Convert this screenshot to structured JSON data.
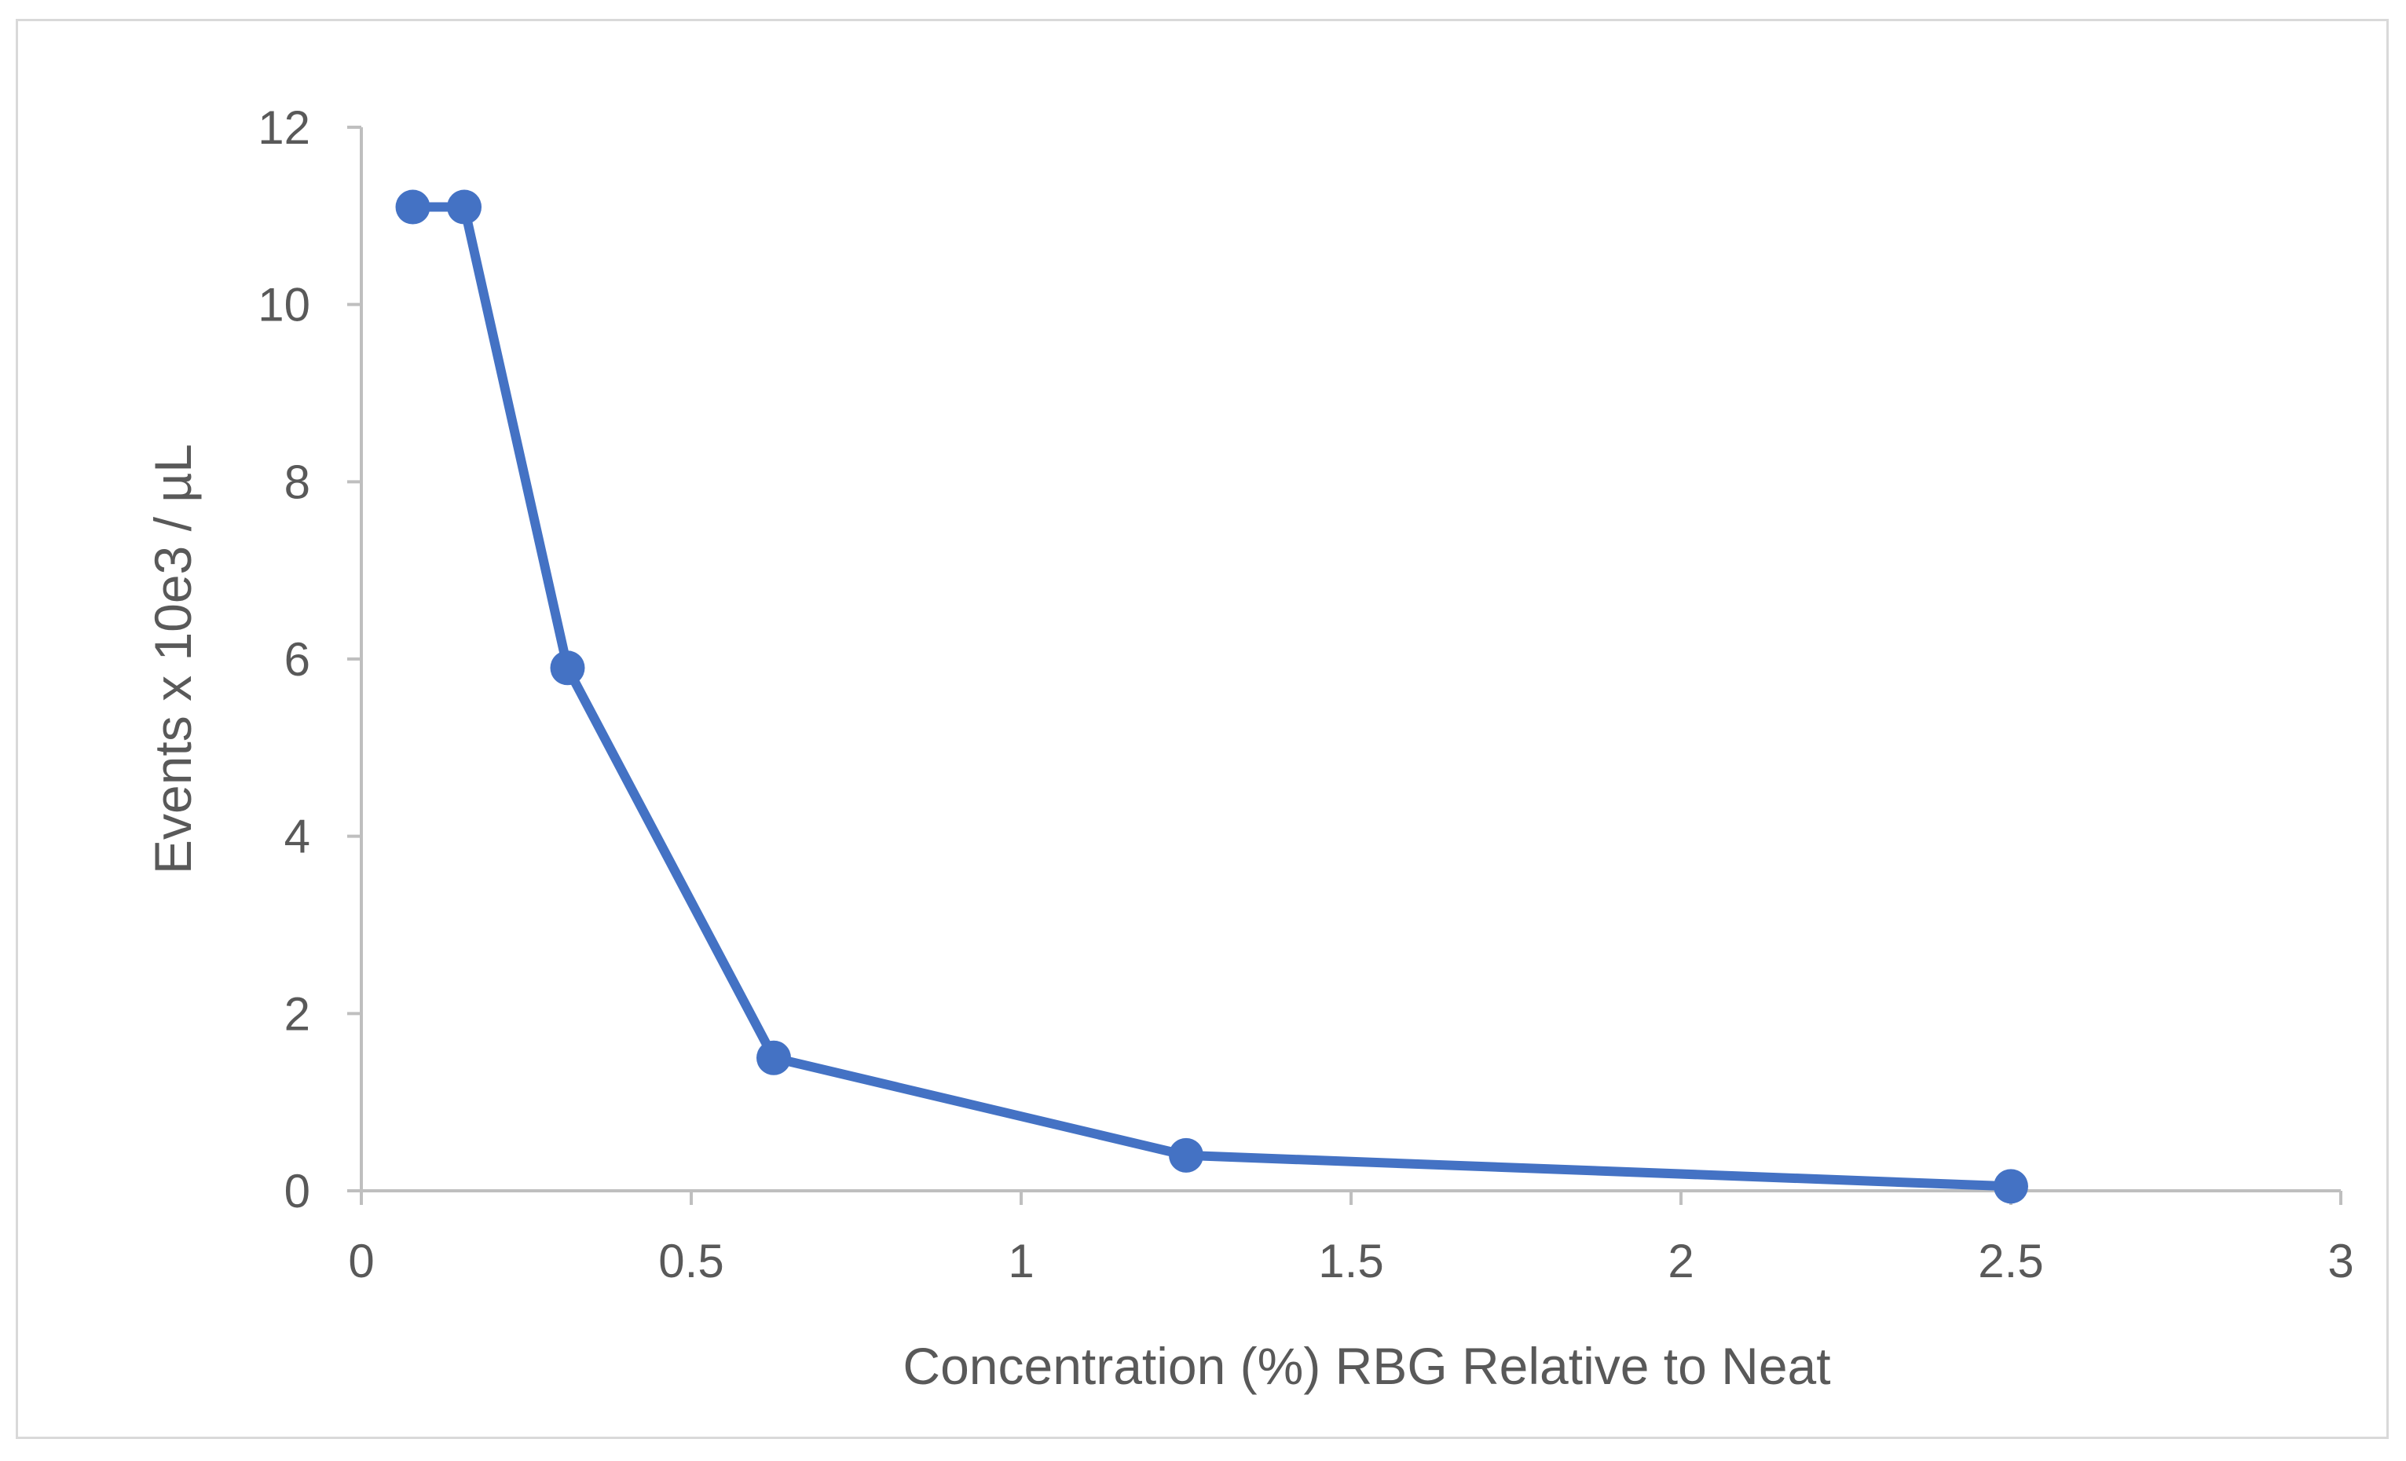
{
  "chart_data": {
    "type": "line",
    "title": "",
    "xlabel": "Concentration (%) RBG Relative to Neat",
    "ylabel": "Events x 10e3 / µL",
    "xlim": [
      0,
      3
    ],
    "ylim": [
      0,
      12
    ],
    "x_ticks": [
      "0",
      "0.5",
      "1",
      "1.5",
      "2",
      "2.5",
      "3"
    ],
    "y_ticks": [
      "0",
      "2",
      "4",
      "6",
      "8",
      "10",
      "12"
    ],
    "grid": false,
    "legend": "none",
    "series": [
      {
        "color": "#4472c4",
        "marker": "circle",
        "x": [
          0.078,
          0.156,
          0.3125,
          0.625,
          1.25,
          2.5
        ],
        "y": [
          11.1,
          11.1,
          5.9,
          1.5,
          0.4,
          0.05
        ]
      }
    ]
  }
}
